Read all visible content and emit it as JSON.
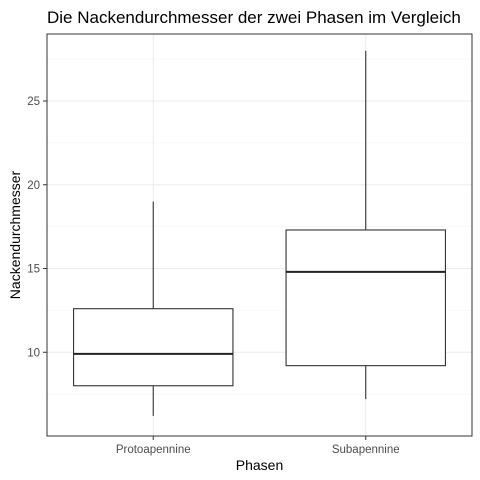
{
  "chart_data": {
    "type": "boxplot",
    "title": "Die Nackendurchmesser der zwei Phasen im Vergleich",
    "xlabel": "Phasen",
    "ylabel": "Nackendurchmesser",
    "ylim": [
      5.0,
      29.0
    ],
    "yticks": [
      10,
      15,
      20,
      25
    ],
    "y_minor_ticks": [
      7.5,
      12.5,
      17.5,
      22.5,
      27.5
    ],
    "grid": true,
    "categories": [
      "Protoapennine",
      "Subapennine"
    ],
    "boxes": [
      {
        "category": "Protoapennine",
        "min": 6.2,
        "q1": 8.0,
        "median": 9.9,
        "q3": 12.6,
        "max": 19.0
      },
      {
        "category": "Subapennine",
        "min": 7.2,
        "q1": 9.2,
        "median": 14.8,
        "q3": 17.3,
        "max": 28.0
      }
    ]
  }
}
